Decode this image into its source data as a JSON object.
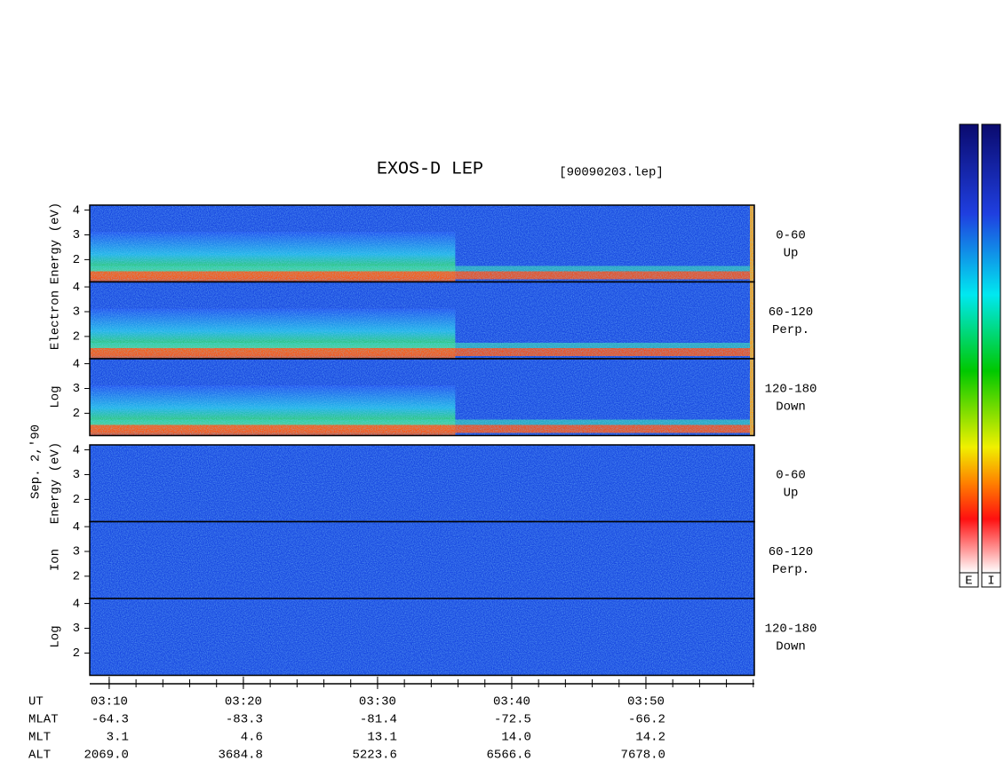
{
  "chart_data": {
    "type": "spectrogram",
    "title": "EXOS-D LEP",
    "file_label": "[90090203.lep]",
    "date_label": "Sep. 2,'90",
    "groups": [
      {
        "name": "Electron",
        "ylabel_words": [
          "Log",
          "Electron",
          "Energy (eV)"
        ]
      },
      {
        "name": "Ion",
        "ylabel_words": [
          "Log",
          "Ion",
          "Energy (eV)"
        ]
      }
    ],
    "panels": [
      {
        "angle": "0-60",
        "direction": "Up"
      },
      {
        "angle": "60-120",
        "direction": "Perp."
      },
      {
        "angle": "120-180",
        "direction": "Down"
      }
    ],
    "ylim": [
      1.1,
      4.2
    ],
    "yticks": [
      2,
      3,
      4
    ],
    "xlim": [
      188.55,
      238.08
    ],
    "xticks": [
      {
        "value": 190,
        "label": "03:10"
      },
      {
        "value": 200,
        "label": "03:20"
      },
      {
        "value": 210,
        "label": "03:30"
      },
      {
        "value": 220,
        "label": "03:40"
      },
      {
        "value": 230,
        "label": "03:50"
      }
    ],
    "minor_xticks": [
      190,
      192,
      194,
      196,
      198,
      200,
      202,
      204,
      206,
      208,
      210,
      212,
      214,
      216,
      218,
      220,
      222,
      224,
      226,
      228,
      230,
      232,
      234,
      236,
      238
    ],
    "x_label": "UT",
    "ephemeris": [
      {
        "label": "MLAT",
        "values": [
          "-64.3",
          "-83.3",
          "-81.4",
          "-72.5",
          "-66.2"
        ]
      },
      {
        "label": "MLT",
        "values": [
          "3.1",
          "4.6",
          "13.1",
          "14.0",
          "14.2"
        ]
      },
      {
        "label": "ALT",
        "values": [
          "2069.0",
          "3684.8",
          "5223.6",
          "6566.6",
          "7678.0"
        ]
      }
    ],
    "colorbar_labels": [
      "E",
      "I"
    ]
  }
}
